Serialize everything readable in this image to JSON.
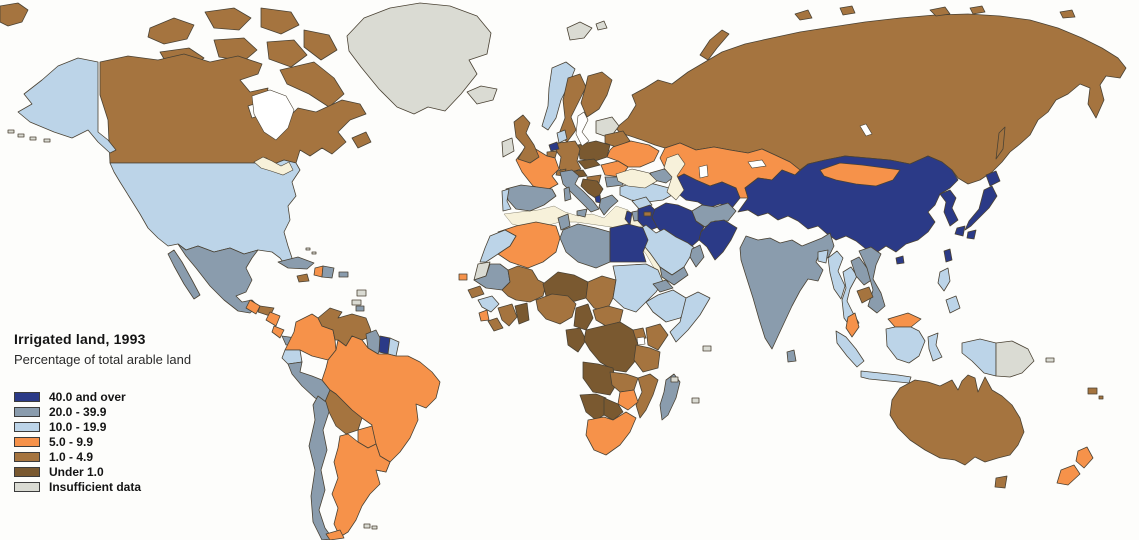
{
  "map": {
    "title": "Irrigated land, 1993",
    "subtitle": "Percentage of total arable land",
    "legend": [
      {
        "id": "c1",
        "label": "40.0 and over",
        "color": "#2b3a87"
      },
      {
        "id": "c2",
        "label": "20.0 - 39.9",
        "color": "#8a9cad"
      },
      {
        "id": "c3",
        "label": "10.0 - 19.9",
        "color": "#bcd4e8"
      },
      {
        "id": "c4",
        "label": "5.0 - 9.9",
        "color": "#f6924a"
      },
      {
        "id": "c5",
        "label": "1.0 - 4.9",
        "color": "#a5743f"
      },
      {
        "id": "c6",
        "label": "Under 1.0",
        "color": "#7a5930"
      },
      {
        "id": "c7",
        "label": "Insufficient data",
        "color": "#dadbd3"
      }
    ],
    "palette": {
      "ocean": "#ffffff",
      "sea": "#f7f1da",
      "lake": "#ffffff"
    },
    "regions": {
      "russia": "c5",
      "kazakhstan": "c4",
      "mongolia": "c4",
      "central-asia": "c1",
      "china": "c1",
      "korea": "c1",
      "taiwan": "c1",
      "hainan": "c1",
      "japan": "c1",
      "norway": "c3",
      "sweden": "c5",
      "finland": "c5",
      "baltic-states": "c7",
      "belarus": "c5",
      "ukraine": "c4",
      "poland": "c6",
      "germany": "c5",
      "netherlands": "c1",
      "belgium": "c5",
      "denmark": "c3",
      "france": "c4",
      "switzerland": "c5",
      "czech-slovakia": "c6",
      "austria": "c6",
      "hungary": "c5",
      "romania": "c4",
      "bulgaria": "c2",
      "balkans": "c6",
      "albania": "c1",
      "greece": "c2",
      "italy": "c2",
      "spain": "c2",
      "portugal": "c3",
      "uk": "c5",
      "ireland": "c7",
      "iceland": "c7",
      "svalbard": "c7",
      "turkey": "c3",
      "caucasus": "c2",
      "syria": "c3",
      "jordan": "c2",
      "israel": "c1",
      "iraq": "c1",
      "iran": "c1",
      "afghanistan": "c2",
      "pakistan": "c1",
      "saudi-arabia": "c3",
      "yemen": "c2",
      "oman": "c2",
      "cyprus": "c5",
      "morocco": "c3",
      "western-sahara": "c7",
      "algeria": "c4",
      "tunisia": "c2",
      "libya": "c2",
      "egypt": "c1",
      "mauritania": "c2",
      "mali": "c5",
      "niger": "c6",
      "chad": "c5",
      "sudan": "c3",
      "eritrea": "c2",
      "ethiopia": "c3",
      "somalia": "c3",
      "senegal": "c5",
      "guinea": "c3",
      "sierra-leone": "c4",
      "liberia": "c5",
      "ivory-coast": "c5",
      "ghana": "c6",
      "nigeria": "c5",
      "cameroon": "c6",
      "central-african-republic": "c5",
      "gabon-congo": "c6",
      "drc": "c6",
      "uganda": "c5",
      "kenya": "c5",
      "tanzania": "c5",
      "angola": "c6",
      "zambia": "c5",
      "mozambique": "c5",
      "zimbabwe": "c4",
      "namibia": "c6",
      "botswana": "c6",
      "south-africa": "c4",
      "madagascar": "c2",
      "cape-verde": "c4",
      "seychelles": "c7",
      "comoros": "c7",
      "mauritius": "c7",
      "india": "c2",
      "sri-lanka": "c2",
      "bangladesh": "c3",
      "myanmar": "c3",
      "thailand": "c3",
      "laos": "c2",
      "vietnam": "c2",
      "cambodia": "c5",
      "malaysia": "c4",
      "indonesia": "c3",
      "papua-new-guinea": "c7",
      "philippines": "c3",
      "greenland": "c7",
      "canada": "c5",
      "usa": "c3",
      "mexico": "c2",
      "guatemala": "c4",
      "honduras": "c5",
      "nicaragua": "c4",
      "costa-rica": "c4",
      "panama": "c2",
      "cuba": "c2",
      "jamaica": "c5",
      "haiti": "c4",
      "dominican-republic": "c2",
      "puerto-rico": "c2",
      "trinidad": "c2",
      "lesser-antilles": "c7",
      "bahamas": "c7",
      "colombia": "c4",
      "venezuela": "c5",
      "guyana": "c2",
      "suriname": "c1",
      "french-guiana": "c3",
      "ecuador": "c3",
      "peru": "c2",
      "brazil": "c4",
      "bolivia": "c5",
      "paraguay": "c4",
      "uruguay": "c3",
      "argentina": "c4",
      "chile": "c2",
      "falkland-islands": "c7",
      "australia": "c5",
      "new-zealand": "c4",
      "fiji": "c5",
      "new-caledonia": "c7",
      "aleutian-islands": "c7"
    }
  }
}
